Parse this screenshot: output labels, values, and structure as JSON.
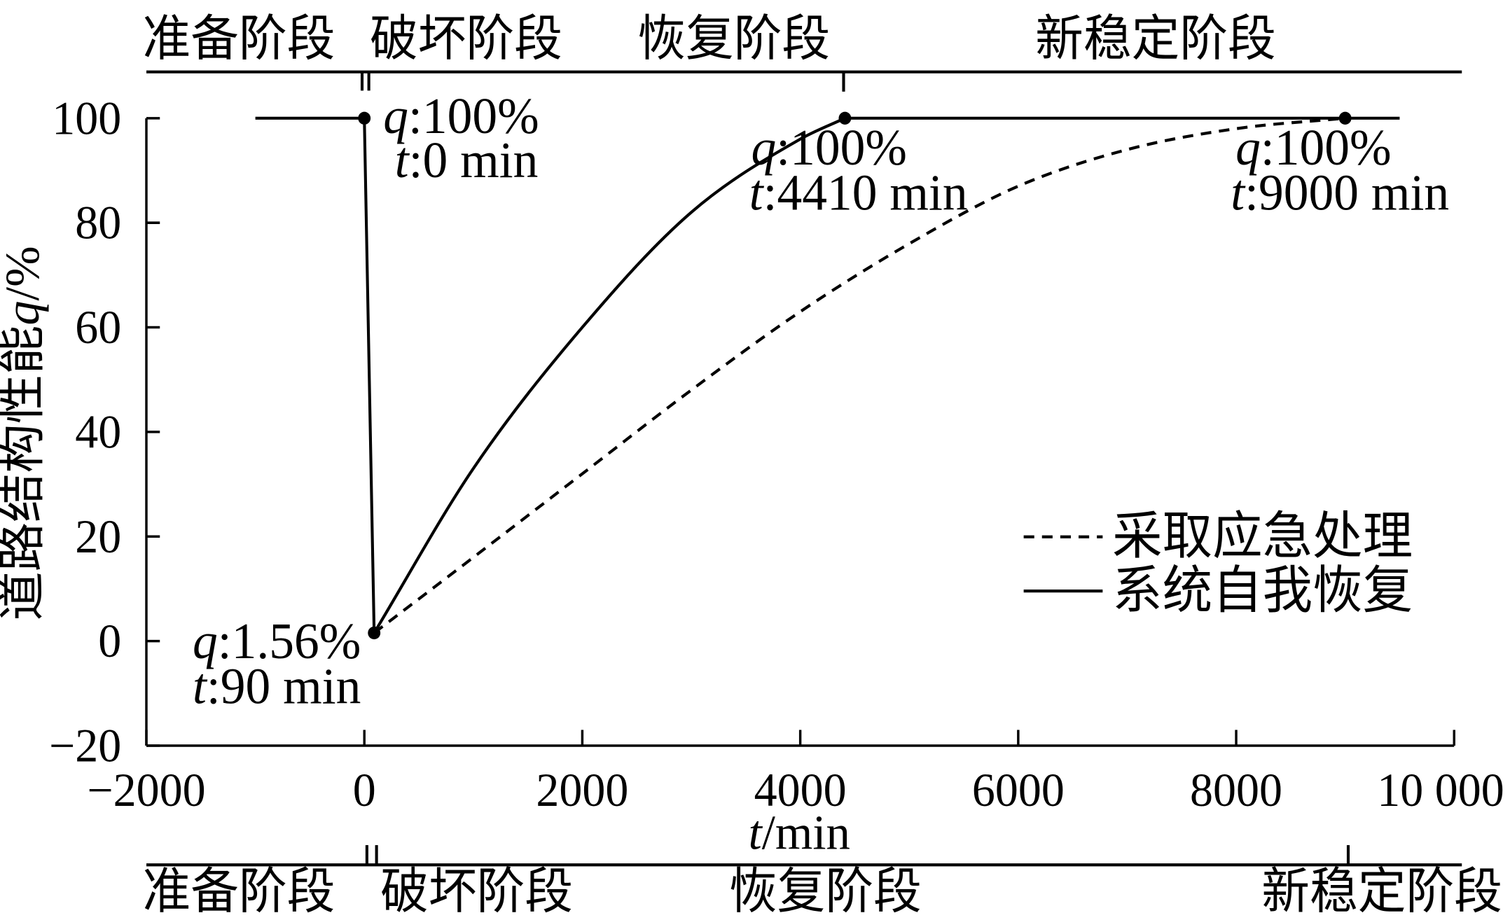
{
  "chart_data": {
    "type": "line",
    "xlabel": "t/min",
    "ylabel": "道路结构性能q/%",
    "xlim": [
      -2000,
      10000
    ],
    "ylim": [
      -20,
      100
    ],
    "xticks": [
      -2000,
      0,
      2000,
      4000,
      6000,
      8000,
      10000
    ],
    "xtick_labels": [
      "−2000",
      "0",
      "2000",
      "4000",
      "6000",
      "8000",
      "10 000"
    ],
    "yticks": [
      -20,
      0,
      20,
      40,
      60,
      80,
      100
    ],
    "ytick_labels": [
      "−20",
      "0",
      "20",
      "40",
      "60",
      "80",
      "100"
    ],
    "grid": false,
    "legend_position": "lower-right",
    "series": [
      {
        "name": "采取应急处理",
        "line_style": "dashed",
        "x": [
          90,
          1000,
          2000,
          3000,
          4000,
          5000,
          6000,
          7000,
          8000,
          9000
        ],
        "y": [
          1.56,
          16,
          32,
          48,
          63,
          76,
          87,
          94,
          98,
          100
        ]
      },
      {
        "name": "系统自我恢复",
        "line_style": "solid",
        "x": [
          -1000,
          0,
          90,
          1000,
          2000,
          3000,
          4000,
          4410,
          9500
        ],
        "y": [
          100,
          100,
          1.56,
          33,
          60,
          82,
          96,
          100,
          100
        ]
      }
    ],
    "key_points": [
      {
        "t": 0,
        "q": 100
      },
      {
        "t": 90,
        "q": 1.56
      },
      {
        "t": 4410,
        "q": 100
      },
      {
        "t": 9000,
        "q": 100
      }
    ],
    "annotations": [
      {
        "q_label": "q:100%",
        "t_label": "t:0 min"
      },
      {
        "q_label": "q:1.56%",
        "t_label": "t:90 min"
      },
      {
        "q_label": "q:100%",
        "t_label": "t:4410 min"
      },
      {
        "q_label": "q:100%",
        "t_label": "t:9000 min"
      }
    ]
  },
  "phase_bar_top": {
    "labels": [
      "准备阶段",
      "破坏阶段",
      "恢复阶段",
      "新稳定阶段"
    ]
  },
  "phase_bar_bottom": {
    "labels": [
      "准备阶段",
      "破坏阶段",
      "恢复阶段",
      "新稳定阶段"
    ]
  }
}
